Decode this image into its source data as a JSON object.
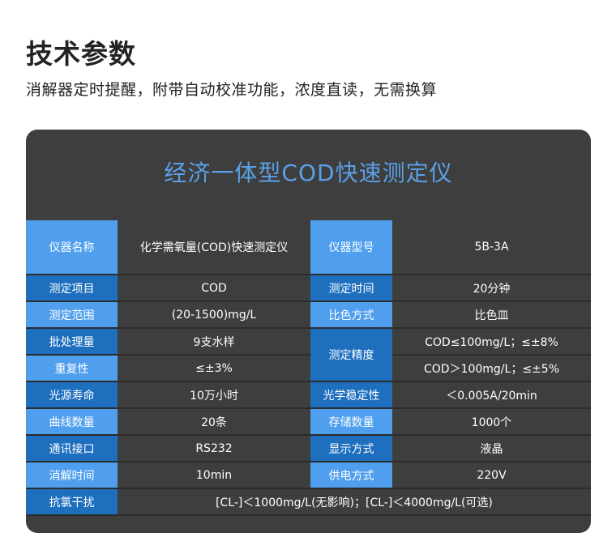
{
  "header": {
    "title": "技术参数",
    "subtitle": "消解器定时提醒，附带自动校准功能，浓度直读，无需换算"
  },
  "panel": {
    "title": "经济一体型COD快速测定仪"
  },
  "specs": {
    "instrument_name_label": "仪器名称",
    "instrument_name_value": "化学需氧量(COD)快速测定仪",
    "model_label": "仪器型号",
    "model_value": "5B-3A",
    "item_label": "测定项目",
    "item_value": "COD",
    "time_label": "测定时间",
    "time_value": "20分钟",
    "range_label": "测定范围",
    "range_value": "(20-1500)mg/L",
    "color_method_label": "比色方式",
    "color_method_value": "比色皿",
    "batch_label": "批处理量",
    "batch_value": "9支水样",
    "precision_label": "测定精度",
    "precision_value_1": "COD≤100mg/L；≤±8%",
    "precision_value_2": "COD＞100mg/L；≤±5%",
    "repeat_label": "重复性",
    "repeat_value": "≤±3%",
    "lamp_label": "光源寿命",
    "lamp_value": "10万小时",
    "stability_label": "光学稳定性",
    "stability_value": "＜0.005A/20min",
    "curve_label": "曲线数量",
    "curve_value": "20条",
    "storage_label": "存储数量",
    "storage_value": "1000个",
    "comm_label": "通讯接口",
    "comm_value": "RS232",
    "display_label": "显示方式",
    "display_value": "液晶",
    "digest_label": "消解时间",
    "digest_value": "10min",
    "power_label": "供电方式",
    "power_value": "220V",
    "chlorine_label": "抗氯干扰",
    "chlorine_value": "[CL-]＜1000mg/L(无影响)；[CL-]＜4000mg/L(可选)"
  },
  "colors": {
    "label_dark": "#1f6fbf",
    "label_light": "#4f9fee",
    "panel_bg": "#3e3e3e",
    "panel_title": "#5aa0e8"
  }
}
